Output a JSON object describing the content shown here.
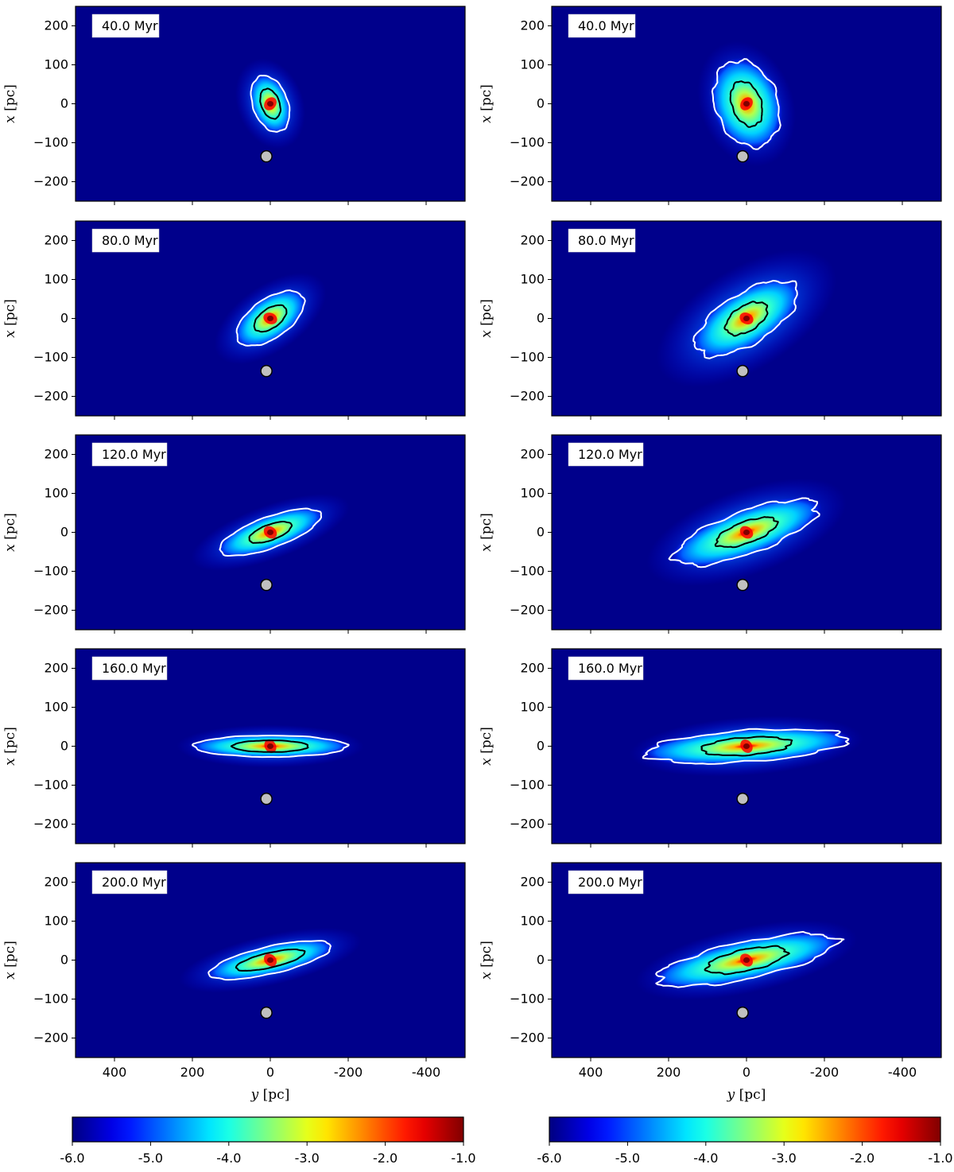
{
  "chart_data": {
    "type": "heatmap",
    "colormap": "jet",
    "background_color": "#00008b",
    "contour_colors": {
      "outer": "#ffffff",
      "inner": "#000000"
    },
    "marker_color": "#c0c0c0",
    "x_axis": {
      "label": "y [pc]",
      "range": [
        500,
        -500
      ],
      "ticks": [
        400,
        200,
        0,
        -200,
        -400
      ],
      "tick_labels": [
        "400",
        "200",
        "0",
        "-200",
        "-400"
      ]
    },
    "y_axis": {
      "label": "x [pc]",
      "range": [
        -250,
        250
      ],
      "ticks": [
        200,
        100,
        0,
        -100,
        -200
      ],
      "tick_labels": [
        "200",
        "100",
        "0",
        "−100",
        "−200"
      ]
    },
    "colorbar": {
      "range": [
        -6.0,
        -1.0
      ],
      "ticks": [
        -6.0,
        -5.0,
        -4.0,
        -3.0,
        -2.0,
        -1.0
      ],
      "tick_labels": [
        "-6.0",
        "-5.0",
        "-4.0",
        "-3.0",
        "-2.0",
        "-1.0"
      ]
    },
    "marker": {
      "y": 0,
      "x": -135
    },
    "columns": [
      {
        "panels": [
          {
            "time": "40.0 Myr",
            "angle": 70,
            "outer": [
              150,
              90
            ],
            "inner": [
              80,
              47
            ],
            "halo": [
              240,
              170
            ],
            "clump": 0
          },
          {
            "time": "80.0 Myr",
            "angle": -35,
            "outer": [
              200,
              100
            ],
            "inner": [
              95,
              50
            ],
            "halo": [
              330,
              170
            ],
            "clump": 0
          },
          {
            "time": "120.0 Myr",
            "angle": -20,
            "outer": [
              275,
              80
            ],
            "inner": [
              115,
              40
            ],
            "halo": [
              430,
              140
            ],
            "clump": 0
          },
          {
            "time": "160.0 Myr",
            "angle": 0,
            "outer": [
              395,
              55
            ],
            "inner": [
              195,
              30
            ],
            "halo": [
              480,
              110
            ],
            "clump": 0
          },
          {
            "time": "200.0 Myr",
            "angle": -13,
            "outer": [
              320,
              70
            ],
            "inner": [
              180,
              38
            ],
            "halo": [
              480,
              130
            ],
            "clump": 0
          }
        ]
      },
      {
        "panels": [
          {
            "time": "40.0 Myr",
            "angle": 70,
            "outer": [
              230,
              160
            ],
            "inner": [
              120,
              75
            ],
            "halo": [
              330,
              240
            ],
            "clump": 0.35
          },
          {
            "time": "80.0 Myr",
            "angle": -32,
            "outer": [
              300,
              130
            ],
            "inner": [
              120,
              65
            ],
            "halo": [
              520,
              260
            ],
            "clump": 0.45
          },
          {
            "time": "120.0 Myr",
            "angle": -20,
            "outer": [
              390,
              110
            ],
            "inner": [
              165,
              55
            ],
            "halo": [
              540,
              220
            ],
            "clump": 0.5
          },
          {
            "time": "160.0 Myr",
            "angle": -4,
            "outer": [
              520,
              80
            ],
            "inner": [
              230,
              45
            ],
            "halo": [
              600,
              150
            ],
            "clump": 0.5
          },
          {
            "time": "200.0 Myr",
            "angle": -12,
            "outer": [
              470,
              95
            ],
            "inner": [
              210,
              55
            ],
            "halo": [
              580,
              170
            ],
            "clump": 0.55
          }
        ]
      }
    ]
  }
}
